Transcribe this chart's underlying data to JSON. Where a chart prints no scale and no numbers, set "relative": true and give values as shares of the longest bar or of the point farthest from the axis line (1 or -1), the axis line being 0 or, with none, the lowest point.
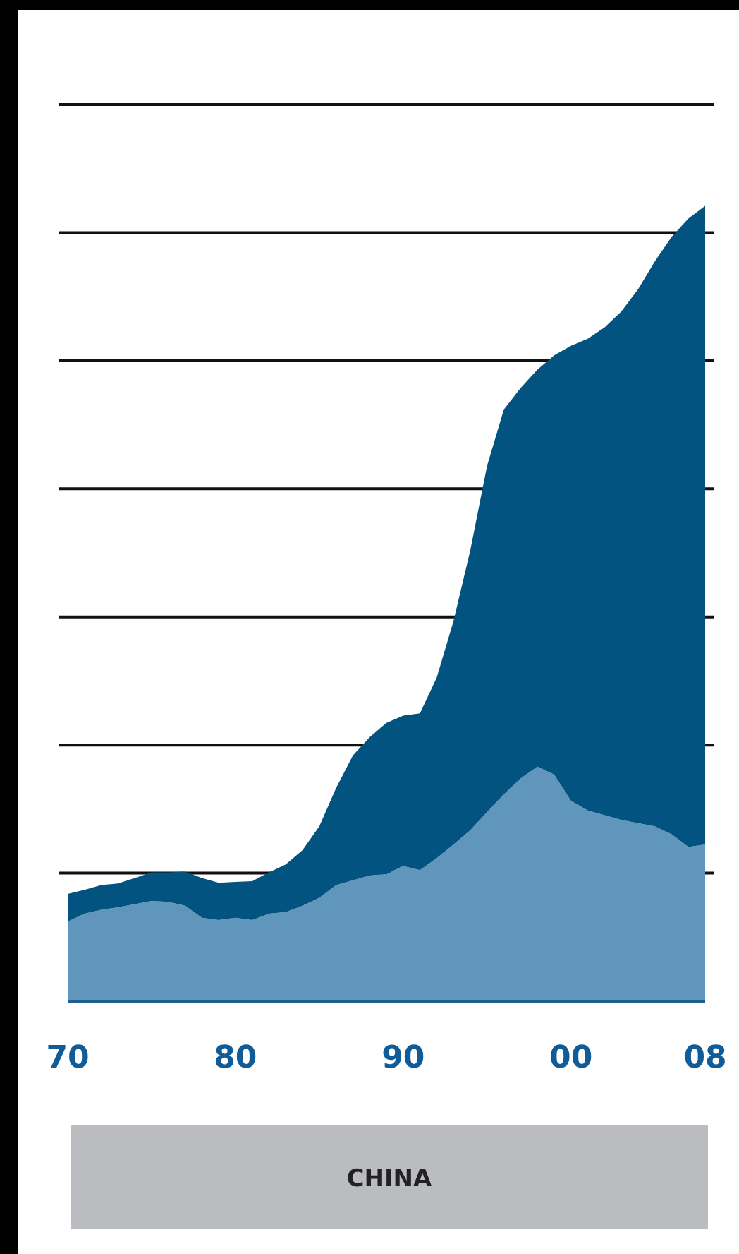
{
  "chart_data": {
    "type": "area",
    "title": "CHINA",
    "relative": true,
    "stacked": true,
    "grid": "y",
    "legend": false,
    "x": [
      1970,
      1971,
      1972,
      1973,
      1974,
      1975,
      1976,
      1977,
      1978,
      1979,
      1980,
      1981,
      1982,
      1983,
      1984,
      1985,
      1986,
      1987,
      1988,
      1989,
      1990,
      1991,
      1992,
      1993,
      1994,
      1995,
      1996,
      1997,
      1998,
      1999,
      2000,
      2001,
      2002,
      2003,
      2004,
      2005,
      2006,
      2007,
      2008
    ],
    "xlim": [
      1970,
      2008
    ],
    "xticks": [
      {
        "value": 1970,
        "label": "70"
      },
      {
        "value": 1980,
        "label": "80"
      },
      {
        "value": 1990,
        "label": "90"
      },
      {
        "value": 2000,
        "label": "00"
      },
      {
        "value": 2008,
        "label": "08"
      }
    ],
    "series": [
      {
        "color": "#6096bb",
        "values": [
          0.1,
          0.11,
          0.115,
          0.118,
          0.122,
          0.126,
          0.125,
          0.12,
          0.105,
          0.102,
          0.105,
          0.102,
          0.11,
          0.112,
          0.12,
          0.13,
          0.146,
          0.152,
          0.158,
          0.16,
          0.17,
          0.165,
          0.18,
          0.197,
          0.215,
          0.238,
          0.26,
          0.28,
          0.295,
          0.285,
          0.252,
          0.24,
          0.234,
          0.228,
          0.224,
          0.22,
          0.21,
          0.194,
          0.197
        ]
      },
      {
        "color": "#02537f",
        "values": [
          0.035,
          0.03,
          0.031,
          0.03,
          0.033,
          0.036,
          0.037,
          0.043,
          0.05,
          0.047,
          0.045,
          0.049,
          0.052,
          0.06,
          0.07,
          0.09,
          0.122,
          0.157,
          0.174,
          0.19,
          0.189,
          0.197,
          0.227,
          0.281,
          0.352,
          0.435,
          0.484,
          0.491,
          0.499,
          0.527,
          0.572,
          0.593,
          0.613,
          0.639,
          0.671,
          0.71,
          0.751,
          0.79,
          0.803
        ]
      }
    ]
  }
}
